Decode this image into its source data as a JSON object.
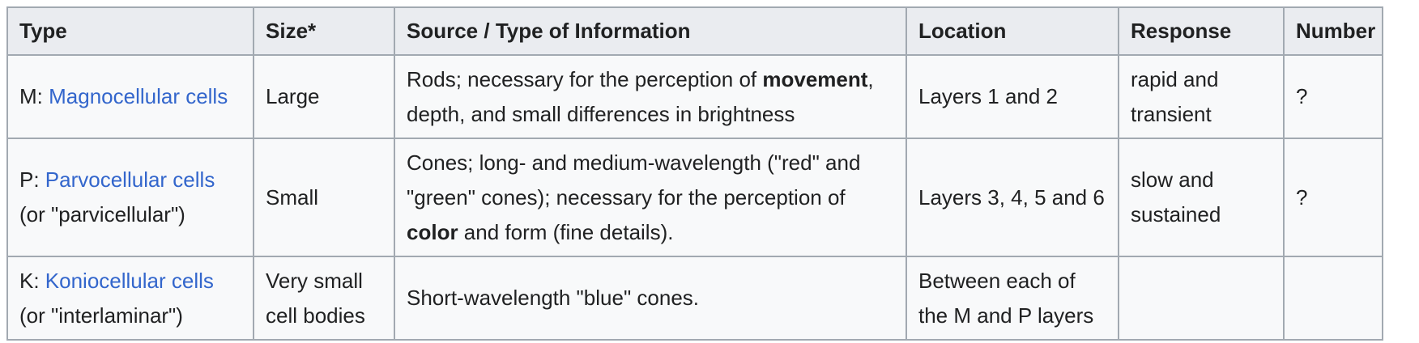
{
  "table": {
    "headers": {
      "type": "Type",
      "size": "Size*",
      "source": "Source / Type of Information",
      "location": "Location",
      "response": "Response",
      "number": "Number"
    },
    "rows": [
      {
        "type_prefix": "M: ",
        "type_link": "Magnocellular cells",
        "type_note": "",
        "size": "Large",
        "source_before": "Rods; necessary for the perception of ",
        "source_bold": "movement",
        "source_after": ", depth, and small differences in brightness",
        "location": "Layers 1 and 2",
        "response": "rapid and transient",
        "number": "?"
      },
      {
        "type_prefix": "P: ",
        "type_link": "Parvocellular cells",
        "type_note": "(or \"parvicellular\")",
        "size": "Small",
        "source_before": "Cones; long- and medium-wavelength (\"red\" and \"green\" cones); necessary for the perception of ",
        "source_bold": "color",
        "source_after": " and form (fine details).",
        "location": "Layers 3, 4, 5 and 6",
        "response": "slow and sustained",
        "number": "?"
      },
      {
        "type_prefix": "K: ",
        "type_link": "Koniocellular cells",
        "type_note": "(or \"interlaminar\")",
        "size": "Very small cell bodies",
        "source_before": "Short-wavelength \"blue\" cones.",
        "source_bold": "",
        "source_after": "",
        "location": "Between each of the M and P layers",
        "response": "",
        "number": ""
      }
    ]
  },
  "colors": {
    "link": "#3366cc",
    "header_bg": "#eaecf0",
    "cell_bg": "#f8f9fa",
    "border": "#a2a9b1",
    "text": "#202122"
  }
}
